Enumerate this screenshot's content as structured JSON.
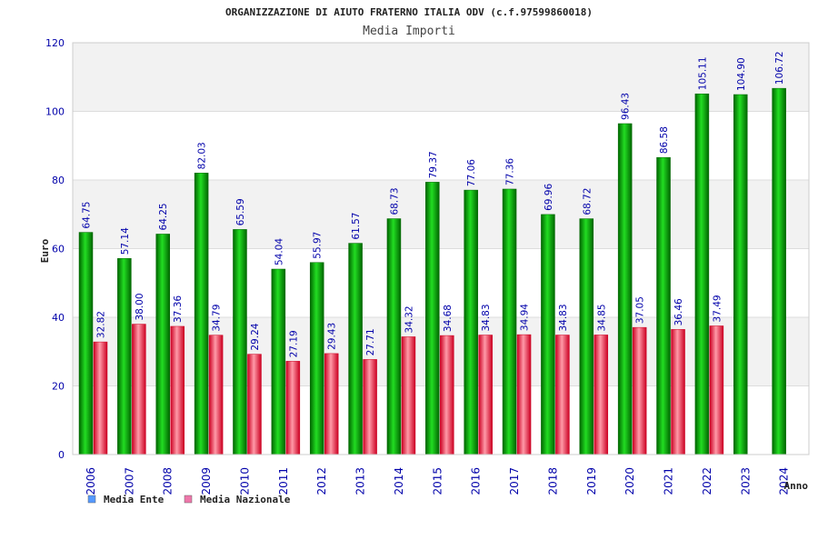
{
  "colors": {
    "ente_dark": "#006600",
    "ente_light": "#22dd22",
    "naz_dark": "#cc0022",
    "naz_light": "#ff9aa8",
    "band": "#f2f2f2",
    "legend_ente": "#5599ff",
    "legend_naz": "#ee77aa"
  },
  "chart_data": {
    "type": "bar",
    "title": "ORGANIZZAZIONE DI AIUTO FRATERNO ITALIA ODV (c.f.97599860018)",
    "subtitle": "Media Importi",
    "xlabel": "Anno",
    "ylabel": "Euro",
    "ylim": [
      0,
      120
    ],
    "yticks": [
      0,
      20,
      40,
      60,
      80,
      100,
      120
    ],
    "categories": [
      "2006",
      "2007",
      "2008",
      "2009",
      "2010",
      "2011",
      "2012",
      "2013",
      "2014",
      "2015",
      "2016",
      "2017",
      "2018",
      "2019",
      "2020",
      "2021",
      "2022",
      "2023",
      "2024"
    ],
    "series": [
      {
        "name": "Media Ente",
        "values": [
          64.75,
          57.14,
          64.25,
          82.03,
          65.59,
          54.04,
          55.97,
          61.57,
          68.73,
          79.37,
          77.06,
          77.36,
          69.96,
          68.72,
          96.43,
          86.58,
          105.11,
          104.9,
          106.72
        ],
        "labels": [
          "64.75",
          "57.14",
          "64.25",
          "82.03",
          "65.59",
          "54.04",
          "55.97",
          "61.57",
          "68.73",
          "79.37",
          "77.06",
          "77.36",
          "69.96",
          "68.72",
          "96.43",
          "86.58",
          "105.11",
          "104.90",
          "106.72"
        ]
      },
      {
        "name": "Media Nazionale",
        "values": [
          32.82,
          38.0,
          37.36,
          34.79,
          29.24,
          27.19,
          29.43,
          27.71,
          34.32,
          34.68,
          34.83,
          34.94,
          34.83,
          34.85,
          37.05,
          36.46,
          37.49,
          null,
          null
        ],
        "labels": [
          "32.82",
          "38.00",
          "37.36",
          "34.79",
          "29.24",
          "27.19",
          "29.43",
          "27.71",
          "34.32",
          "34.68",
          "34.83",
          "34.94",
          "34.83",
          "34.85",
          "37.05",
          "36.46",
          "37.49",
          null,
          null
        ]
      }
    ],
    "legend_position": "bottom-left"
  }
}
